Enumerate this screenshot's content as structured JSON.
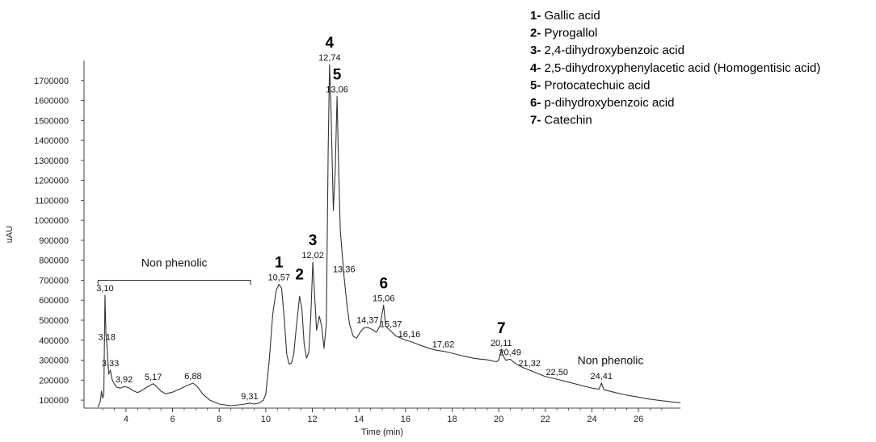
{
  "chart_data": {
    "type": "line",
    "xlabel": "Time (min)",
    "ylabel": "uAU",
    "xlim": [
      2.2,
      27.8
    ],
    "ylim": [
      60000,
      1800000
    ],
    "x_ticks": [
      4,
      6,
      8,
      10,
      12,
      14,
      16,
      18,
      20,
      22,
      24,
      26
    ],
    "y_ticks": [
      100000,
      200000,
      300000,
      400000,
      500000,
      600000,
      700000,
      800000,
      900000,
      1000000,
      1100000,
      1200000,
      1300000,
      1400000,
      1500000,
      1600000,
      1700000
    ],
    "series": [
      {
        "color": "#333333",
        "points": [
          [
            2.8,
            65000
          ],
          [
            2.9,
            95000
          ],
          [
            2.95,
            145000
          ],
          [
            3.0,
            110000
          ],
          [
            3.05,
            130000
          ],
          [
            3.1,
            625000
          ],
          [
            3.14,
            430000
          ],
          [
            3.18,
            380000
          ],
          [
            3.22,
            300000
          ],
          [
            3.26,
            230000
          ],
          [
            3.33,
            250000
          ],
          [
            3.4,
            205000
          ],
          [
            3.5,
            180000
          ],
          [
            3.6,
            165000
          ],
          [
            3.75,
            160000
          ],
          [
            3.92,
            168000
          ],
          [
            4.1,
            163000
          ],
          [
            4.3,
            148000
          ],
          [
            4.5,
            138000
          ],
          [
            4.7,
            150000
          ],
          [
            4.9,
            165000
          ],
          [
            5.05,
            175000
          ],
          [
            5.17,
            182000
          ],
          [
            5.3,
            170000
          ],
          [
            5.5,
            145000
          ],
          [
            5.7,
            132000
          ],
          [
            6.0,
            140000
          ],
          [
            6.3,
            155000
          ],
          [
            6.6,
            172000
          ],
          [
            6.88,
            185000
          ],
          [
            7.05,
            170000
          ],
          [
            7.3,
            130000
          ],
          [
            7.6,
            100000
          ],
          [
            8.0,
            80000
          ],
          [
            8.5,
            72000
          ],
          [
            9.0,
            78000
          ],
          [
            9.31,
            85000
          ],
          [
            9.5,
            80000
          ],
          [
            9.7,
            85000
          ],
          [
            9.9,
            100000
          ],
          [
            10.0,
            130000
          ],
          [
            10.15,
            300000
          ],
          [
            10.3,
            530000
          ],
          [
            10.45,
            650000
          ],
          [
            10.57,
            680000
          ],
          [
            10.68,
            660000
          ],
          [
            10.8,
            500000
          ],
          [
            10.9,
            330000
          ],
          [
            11.0,
            280000
          ],
          [
            11.1,
            285000
          ],
          [
            11.2,
            330000
          ],
          [
            11.3,
            450000
          ],
          [
            11.45,
            620000
          ],
          [
            11.55,
            560000
          ],
          [
            11.65,
            380000
          ],
          [
            11.75,
            310000
          ],
          [
            11.85,
            340000
          ],
          [
            11.93,
            510000
          ],
          [
            12.02,
            790000
          ],
          [
            12.1,
            620000
          ],
          [
            12.18,
            450000
          ],
          [
            12.3,
            520000
          ],
          [
            12.4,
            470000
          ],
          [
            12.5,
            360000
          ],
          [
            12.6,
            480000
          ],
          [
            12.68,
            1350000
          ],
          [
            12.74,
            1780000
          ],
          [
            12.8,
            1550000
          ],
          [
            12.9,
            1050000
          ],
          [
            12.98,
            1250000
          ],
          [
            13.06,
            1620000
          ],
          [
            13.12,
            1300000
          ],
          [
            13.2,
            950000
          ],
          [
            13.36,
            720000
          ],
          [
            13.5,
            560000
          ],
          [
            13.6,
            480000
          ],
          [
            13.75,
            420000
          ],
          [
            13.9,
            410000
          ],
          [
            14.05,
            440000
          ],
          [
            14.2,
            460000
          ],
          [
            14.37,
            465000
          ],
          [
            14.55,
            455000
          ],
          [
            14.75,
            440000
          ],
          [
            14.9,
            470000
          ],
          [
            15.06,
            575000
          ],
          [
            15.15,
            470000
          ],
          [
            15.37,
            445000
          ],
          [
            15.6,
            420000
          ],
          [
            15.8,
            410000
          ],
          [
            16.0,
            400000
          ],
          [
            16.16,
            395000
          ],
          [
            16.4,
            385000
          ],
          [
            16.7,
            372000
          ],
          [
            17.0,
            360000
          ],
          [
            17.3,
            350000
          ],
          [
            17.62,
            345000
          ],
          [
            18.0,
            335000
          ],
          [
            18.5,
            320000
          ],
          [
            19.0,
            308000
          ],
          [
            19.5,
            302000
          ],
          [
            19.9,
            292000
          ],
          [
            20.0,
            300000
          ],
          [
            20.11,
            350000
          ],
          [
            20.2,
            320000
          ],
          [
            20.3,
            300000
          ],
          [
            20.49,
            305000
          ],
          [
            20.7,
            285000
          ],
          [
            21.0,
            265000
          ],
          [
            21.32,
            250000
          ],
          [
            21.7,
            232000
          ],
          [
            22.0,
            218000
          ],
          [
            22.5,
            205000
          ],
          [
            23.0,
            190000
          ],
          [
            23.5,
            175000
          ],
          [
            24.0,
            160000
          ],
          [
            24.3,
            155000
          ],
          [
            24.41,
            185000
          ],
          [
            24.52,
            152000
          ],
          [
            25.0,
            138000
          ],
          [
            25.5,
            125000
          ],
          [
            26.0,
            115000
          ],
          [
            26.5,
            105000
          ],
          [
            27.0,
            97000
          ],
          [
            27.5,
            90000
          ],
          [
            27.8,
            87000
          ]
        ]
      }
    ],
    "peak_labels": [
      {
        "x": 3.1,
        "y": 625000,
        "text": "3,10"
      },
      {
        "x": 3.18,
        "y": 380000,
        "text": "3,18"
      },
      {
        "x": 3.33,
        "y": 250000,
        "text": "3,33"
      },
      {
        "x": 3.92,
        "y": 168000,
        "text": "3,92"
      },
      {
        "x": 5.17,
        "y": 182000,
        "text": "5,17"
      },
      {
        "x": 6.88,
        "y": 185000,
        "text": "6,88"
      },
      {
        "x": 9.31,
        "y": 85000,
        "text": "9,31"
      },
      {
        "x": 10.57,
        "y": 680000,
        "text": "10,57"
      },
      {
        "x": 12.02,
        "y": 790000,
        "text": "12,02"
      },
      {
        "x": 12.74,
        "y": 1780000,
        "text": "12,74"
      },
      {
        "x": 13.06,
        "y": 1620000,
        "text": "13,06"
      },
      {
        "x": 13.36,
        "y": 720000,
        "text": "13,36"
      },
      {
        "x": 14.37,
        "y": 465000,
        "text": "14,37"
      },
      {
        "x": 15.06,
        "y": 575000,
        "text": "15,06"
      },
      {
        "x": 15.37,
        "y": 445000,
        "text": "15,37"
      },
      {
        "x": 16.16,
        "y": 395000,
        "text": "16,16"
      },
      {
        "x": 17.62,
        "y": 345000,
        "text": "17,62"
      },
      {
        "x": 20.11,
        "y": 350000,
        "text": "20,11"
      },
      {
        "x": 20.49,
        "y": 305000,
        "text": "20,49"
      },
      {
        "x": 21.32,
        "y": 250000,
        "text": "21,32"
      },
      {
        "x": 22.5,
        "y": 205000,
        "text": "22,50"
      },
      {
        "x": 24.41,
        "y": 185000,
        "text": "24,41"
      }
    ],
    "compound_markers": [
      {
        "text": "1",
        "x": 10.57,
        "y": 680000
      },
      {
        "text": "2",
        "x": 11.45,
        "y": 620000
      },
      {
        "text": "3",
        "x": 12.02,
        "y": 790000
      },
      {
        "text": "4",
        "x": 12.74,
        "y": 1780000
      },
      {
        "text": "5",
        "x": 13.06,
        "y": 1620000
      },
      {
        "text": "6",
        "x": 15.06,
        "y": 575000
      },
      {
        "text": "7",
        "x": 20.11,
        "y": 350000
      }
    ],
    "annotations": [
      {
        "text": "Non phenolic",
        "x_start": 2.8,
        "x_end": 9.35,
        "y": 700000,
        "bracket": true
      },
      {
        "text": "Non phenolic",
        "x": 24.8,
        "y": 300000,
        "bracket": false
      }
    ],
    "legend": [
      {
        "num": "1-",
        "name": " Gallic acid"
      },
      {
        "num": "2-",
        "name": " Pyrogallol"
      },
      {
        "num": "3-",
        "name": " 2,4-dihydroxybenzoic acid"
      },
      {
        "num": "4-",
        "name": " 2,5-dihydroxyphenylacetic acid (Homogentisic acid)"
      },
      {
        "num": "5-",
        "name": " Protocatechuic acid"
      },
      {
        "num": "6-",
        "name": " p-dihydroxybenzoic acid"
      },
      {
        "num": "7-",
        "name": " Catechin"
      }
    ]
  }
}
